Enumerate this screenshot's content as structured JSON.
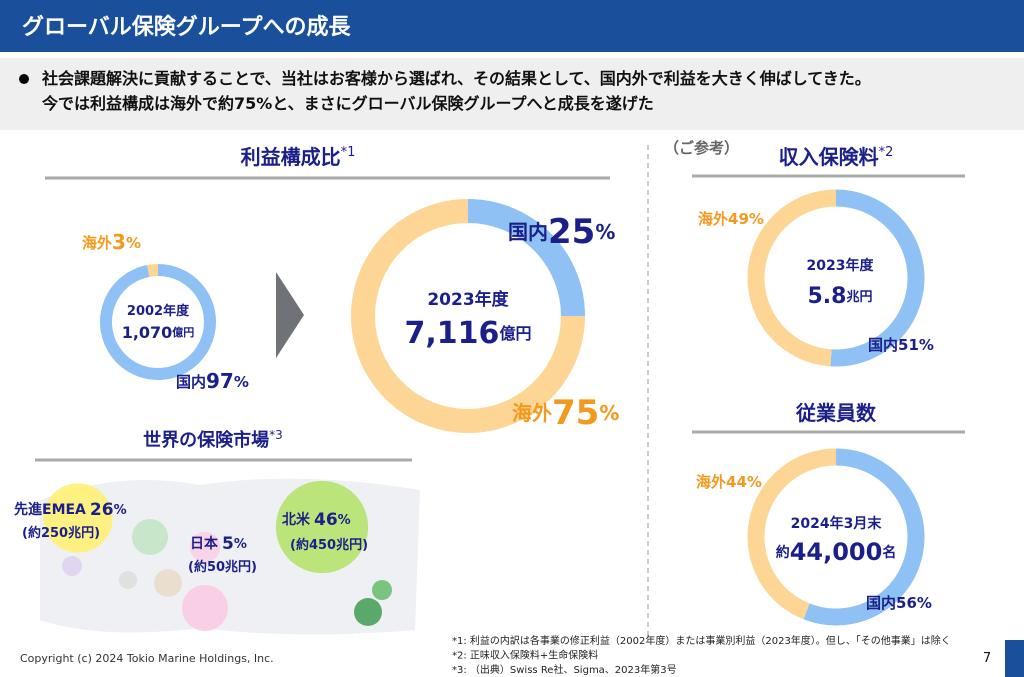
{
  "header": {
    "title": "グローバル保険グループへの成長"
  },
  "summary": [
    "社会課題解決に貢献することで、当社はお客様から選ばれ、その結果として、国内外で利益を大きく伸ばしてきた。",
    "今では利益構成は海外で約75%と、まさにグローバル保険グループへと成長を遂げた"
  ],
  "profit": {
    "title": "利益構成比",
    "note": "*1",
    "charts": [
      {
        "type": "donut",
        "period": "2002年度",
        "total": "1,070",
        "unit": "億円",
        "segments": [
          {
            "name": "国内",
            "value": 97,
            "unit": "%",
            "color": "#8fc1f5"
          },
          {
            "name": "海外",
            "value": 3,
            "unit": "%",
            "color": "#fdd595"
          }
        ]
      },
      {
        "type": "donut",
        "period": "2023年度",
        "total": "7,116",
        "unit": "億円",
        "segments": [
          {
            "name": "国内",
            "value": 25,
            "unit": "%",
            "color": "#8fc1f5"
          },
          {
            "name": "海外",
            "value": 75,
            "unit": "%",
            "color": "#fdd595"
          }
        ]
      }
    ]
  },
  "reference": "（ご参考）",
  "premiums": {
    "title": "収入保険料",
    "note": "*2",
    "type": "donut",
    "period": "2023年度",
    "total": "5.8",
    "unit": "兆円",
    "segments": [
      {
        "name": "国内",
        "value": 51,
        "unit": "%",
        "color": "#8fc1f5"
      },
      {
        "name": "海外",
        "value": 49,
        "unit": "%",
        "color": "#fdd595"
      }
    ]
  },
  "employees": {
    "title": "従業員数",
    "type": "donut",
    "period": "2024年3月末",
    "prefix": "約",
    "total": "44,000",
    "unit": "名",
    "segments": [
      {
        "name": "国内",
        "value": 56,
        "unit": "%",
        "color": "#8fc1f5"
      },
      {
        "name": "海外",
        "value": 44,
        "unit": "%",
        "color": "#fdd595"
      }
    ]
  },
  "world": {
    "title": "世界の保険市場",
    "note": "*3",
    "regions": [
      {
        "name": "先進EMEA",
        "value": 26,
        "unit": "%",
        "size": "(約250兆円)",
        "color": "#fff176"
      },
      {
        "name": "日本",
        "value": 5,
        "unit": "%",
        "size": "(約50兆円)",
        "color": "#f9d0e8"
      },
      {
        "name": "北米",
        "value": 46,
        "unit": "%",
        "size": "(約450兆円)",
        "color": "#b5e36e"
      }
    ]
  },
  "footnotes": [
    "*1: 利益の内訳は各事業の修正利益（2002年度）または事業別利益（2023年度）。但し、「その他事業」は除く",
    "*2: 正味収入保険料+生命保険料",
    "*3: （出典）Swiss Re社、Sigma、2023年第3号"
  ],
  "footer": {
    "copyright": "Copyright (c) 2024 Tokio Marine Holdings, Inc.",
    "page": "7"
  }
}
